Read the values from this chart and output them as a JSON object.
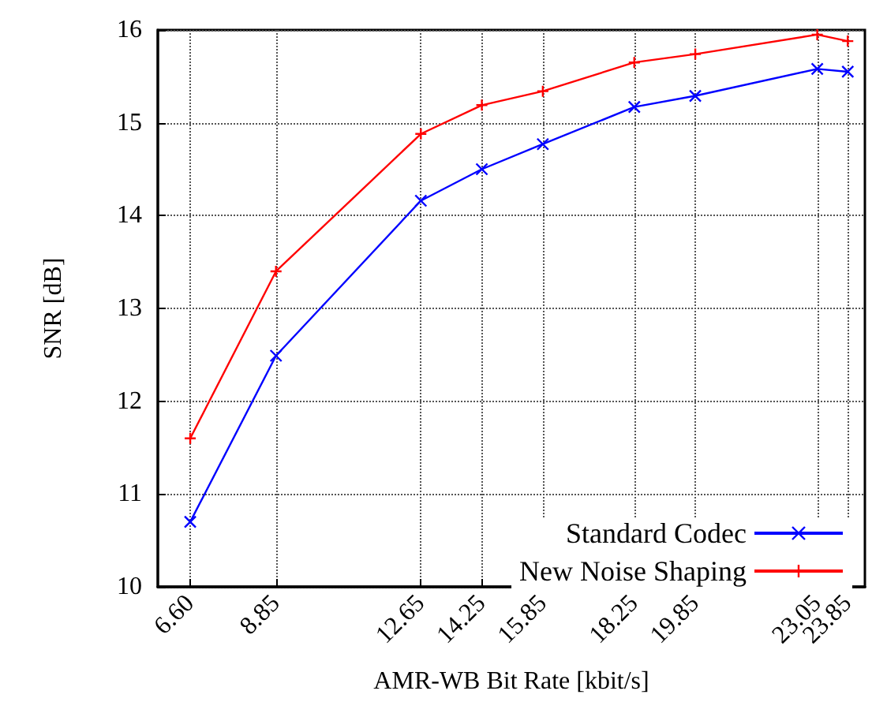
{
  "chart_data": {
    "type": "line",
    "xlabel": "AMR-WB Bit Rate [kbit/s]",
    "ylabel": "SNR [dB]",
    "x": [
      6.6,
      8.85,
      12.65,
      14.25,
      15.85,
      18.25,
      19.85,
      23.05,
      23.85
    ],
    "series": [
      {
        "name": "Standard Codec",
        "color": "#0000ff",
        "marker": "cross",
        "values": [
          10.7,
          12.49,
          14.16,
          14.5,
          14.77,
          15.17,
          15.29,
          15.58,
          15.55
        ]
      },
      {
        "name": "New Noise Shaping",
        "color": "#ff0000",
        "marker": "plus",
        "values": [
          11.6,
          13.4,
          14.88,
          15.19,
          15.34,
          15.65,
          15.74,
          15.95,
          15.88
        ]
      }
    ],
    "xlim": [
      5.75,
      24.3
    ],
    "xticks": [
      {
        "value": 6.6,
        "label": "6.60"
      },
      8.85,
      12.65,
      14.25,
      15.85,
      18.25,
      19.85,
      23.05,
      23.85
    ],
    "ylim": [
      10,
      16
    ],
    "yticks": [
      10,
      11,
      12,
      13,
      14,
      15,
      16
    ],
    "grid": true,
    "legend": "bottom right",
    "line_style": "solid"
  }
}
